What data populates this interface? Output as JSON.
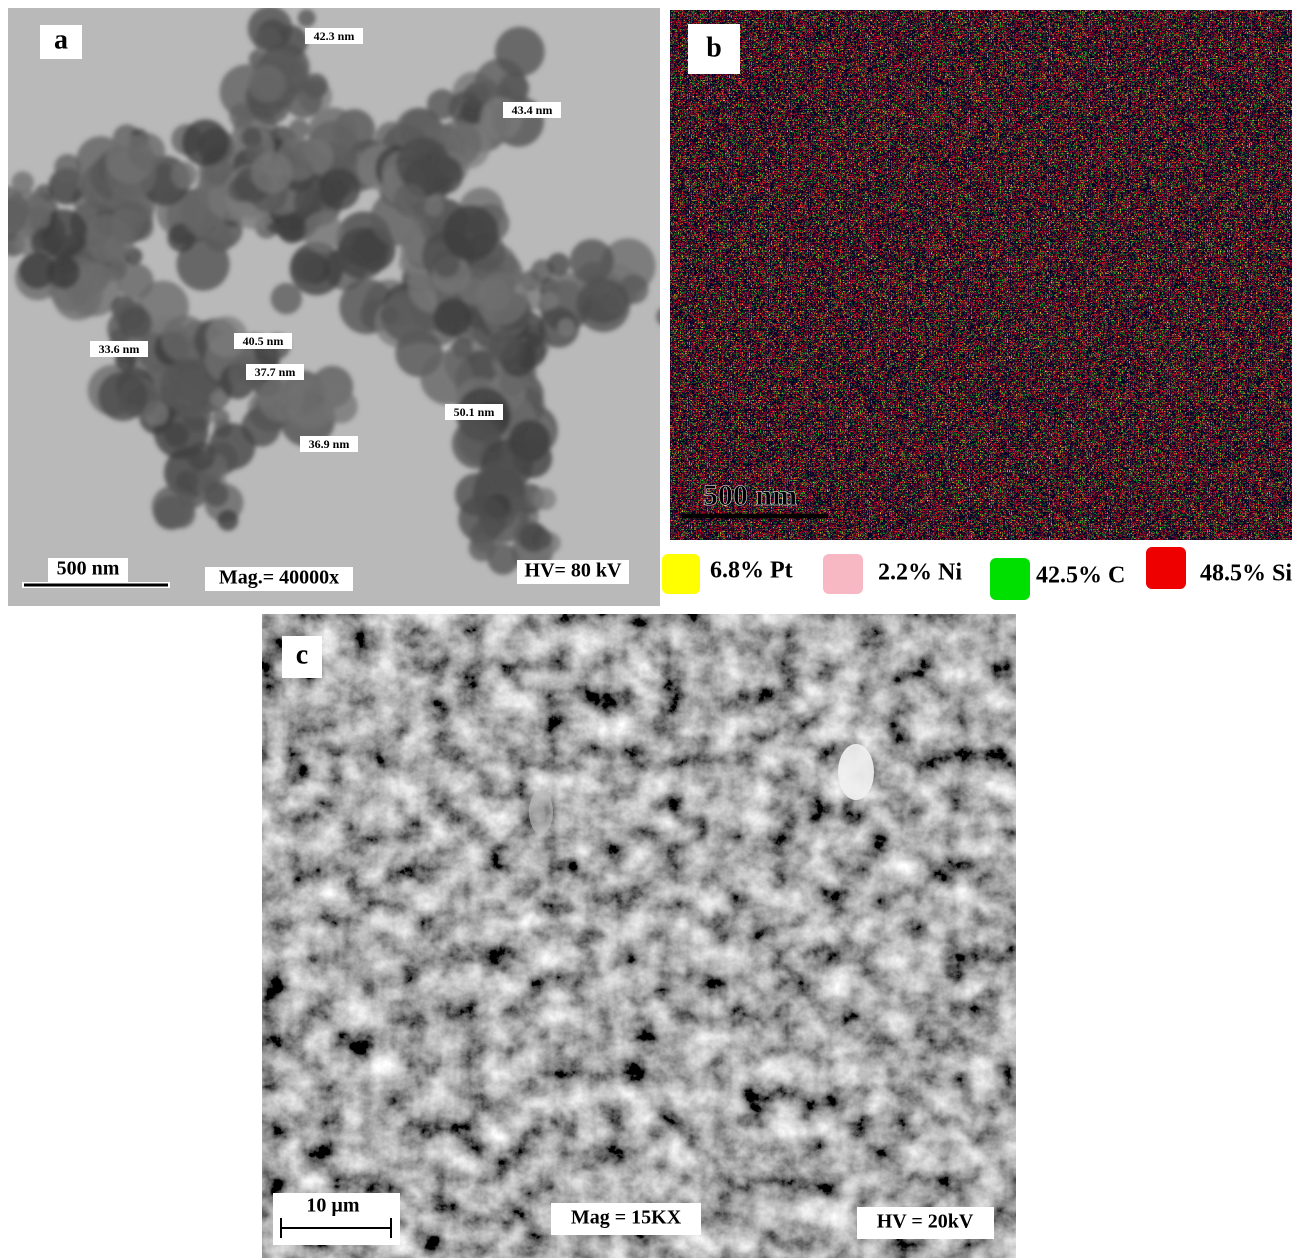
{
  "panels": [
    {
      "label": "a",
      "annotations": [
        "42.3 nm",
        "43.4 nm",
        "33.6 nm",
        "40.5 nm",
        "37.7 nm",
        "50.1 nm",
        "36.9 nm"
      ],
      "scale_bar": "500 nm",
      "magnification": "Mag.= 40000x",
      "voltage": "HV= 80 kV"
    },
    {
      "label": "b",
      "scale_bar": "500 nm",
      "legend": [
        "6.8% Pt",
        "2.2% Ni",
        "42.5% C",
        "48.5% Si"
      ]
    },
    {
      "label": "c",
      "scale_bar": "10 µm",
      "magnification": "Mag = 15KX",
      "voltage": "HV = 20kV"
    }
  ]
}
